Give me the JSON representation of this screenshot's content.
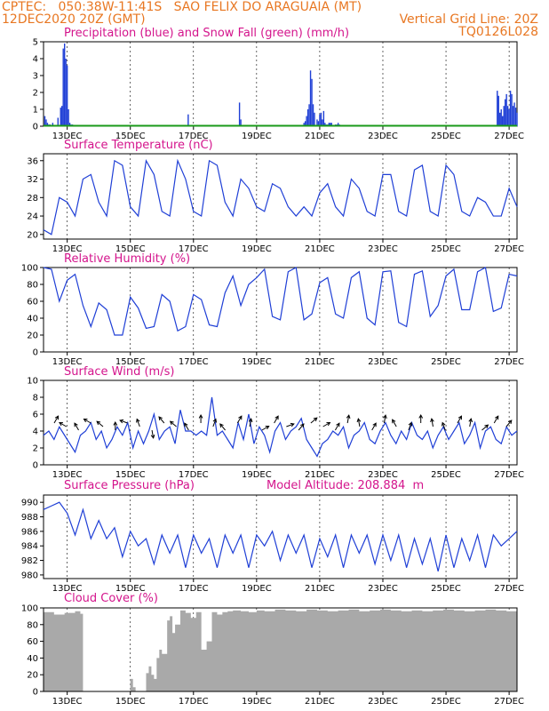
{
  "header": {
    "line1_left": "CPTEC:   050:38W-11:41S   SAO FELIX DO ARAGUAIA (MT)",
    "line2_left": "12DEC2020 20Z (GMT)",
    "line2_right": "Vertical Grid Line: 20Z",
    "line3_right": "TQ0126L028"
  },
  "colors": {
    "header": "#e87722",
    "titles": "#d4148c",
    "line": "#1f3fd6",
    "snow": "#1a9a1a",
    "cloud": "#a9a9a9"
  },
  "x_ticks": [
    "13DEC",
    "15DEC",
    "17DEC",
    "19DEC",
    "21DEC",
    "23DEC",
    "25DEC",
    "27DEC"
  ],
  "chart_data": [
    {
      "type": "bar",
      "title": "Precipitation (blue) and Snow Fall (green) (mm/h)",
      "ylim": [
        0,
        5
      ],
      "yticks": [
        0,
        1,
        2,
        3,
        4,
        5
      ],
      "x_range_hours": [
        0,
        360
      ],
      "series": [
        {
          "name": "Precipitation",
          "color": "#1f3fd6",
          "x": [
            1,
            2,
            3,
            4,
            5,
            7,
            11,
            13,
            14,
            15,
            16,
            17,
            18,
            19,
            20,
            21,
            22,
            110,
            149,
            150,
            198,
            199,
            200,
            201,
            202,
            203,
            204,
            205,
            206,
            208,
            209,
            210,
            211,
            212,
            213,
            214,
            215,
            216,
            217,
            218,
            219,
            222,
            223,
            224,
            225,
            345,
            346,
            347,
            348,
            349,
            350,
            351,
            352,
            353,
            354,
            355,
            356,
            357,
            358,
            359,
            360
          ],
          "values": [
            0.6,
            0.4,
            0.2,
            0.1,
            0.1,
            0.2,
            0.5,
            1.1,
            1.2,
            4.6,
            4.9,
            4.0,
            3.6,
            1.0,
            0.2,
            0.1,
            0.1,
            0.7,
            1.4,
            0.4,
            0.2,
            0.3,
            0.6,
            1.0,
            1.3,
            3.3,
            2.8,
            1.3,
            0.8,
            0.4,
            0.3,
            0.7,
            0.8,
            0.4,
            0.9,
            0.2,
            0.1,
            0.1,
            0.2,
            0.2,
            0.2,
            0.1,
            0.1,
            0.2,
            0.1,
            2.1,
            1.8,
            0.8,
            1.0,
            0.6,
            1.2,
            1.6,
            1.9,
            1.2,
            1.0,
            2.1,
            1.9,
            1.2,
            1.4,
            1.1,
            0.8
          ]
        },
        {
          "name": "Snow Fall",
          "color": "#1a9a1a",
          "x": [
            0,
            360
          ],
          "values": [
            0,
            0
          ]
        }
      ]
    },
    {
      "type": "line",
      "title": "Surface Temperature (nC)",
      "ylim": [
        19,
        37.5
      ],
      "yticks": [
        20,
        24,
        28,
        32,
        36
      ],
      "x": [
        0,
        6,
        12,
        18,
        24,
        30,
        36,
        42,
        48,
        54,
        60,
        66,
        72,
        78,
        84,
        90,
        96,
        102,
        108,
        114,
        120,
        126,
        132,
        138,
        144,
        150,
        156,
        162,
        168,
        174,
        180,
        186,
        192,
        198,
        204,
        210,
        216,
        222,
        228,
        234,
        240,
        246,
        252,
        258,
        264,
        270,
        276,
        282,
        288,
        294,
        300,
        306,
        312,
        318,
        324,
        330,
        336,
        342,
        348,
        354,
        360
      ],
      "values": [
        21,
        20,
        28,
        27,
        24,
        32,
        33,
        27,
        24,
        36,
        35,
        26,
        24,
        36,
        33,
        25,
        24,
        36,
        32,
        25,
        24,
        36,
        35,
        27,
        24,
        32,
        30,
        26,
        25,
        31,
        30,
        26,
        24,
        26,
        24,
        29,
        31,
        26,
        24,
        32,
        30,
        25,
        24,
        33,
        33,
        25,
        24,
        34,
        35,
        25,
        24,
        35,
        33,
        25,
        24,
        28,
        27,
        24,
        24,
        30,
        26
      ]
    },
    {
      "type": "line",
      "title": "Relative Humidity (%)",
      "ylim": [
        0,
        100
      ],
      "yticks": [
        0,
        20,
        40,
        60,
        80,
        100
      ],
      "x": [
        0,
        6,
        12,
        18,
        24,
        30,
        36,
        42,
        48,
        54,
        60,
        66,
        72,
        78,
        84,
        90,
        96,
        102,
        108,
        114,
        120,
        126,
        132,
        138,
        144,
        150,
        156,
        162,
        168,
        174,
        180,
        186,
        192,
        198,
        204,
        210,
        216,
        222,
        228,
        234,
        240,
        246,
        252,
        258,
        264,
        270,
        276,
        282,
        288,
        294,
        300,
        306,
        312,
        318,
        324,
        330,
        336,
        342,
        348,
        354,
        360
      ],
      "values": [
        100,
        98,
        60,
        85,
        92,
        55,
        30,
        58,
        50,
        20,
        20,
        65,
        52,
        28,
        30,
        68,
        60,
        25,
        30,
        68,
        62,
        32,
        30,
        70,
        90,
        55,
        80,
        88,
        98,
        42,
        38,
        95,
        100,
        38,
        45,
        82,
        88,
        45,
        40,
        88,
        95,
        40,
        32,
        95,
        96,
        35,
        30,
        92,
        96,
        42,
        55,
        90,
        98,
        50,
        50,
        95,
        100,
        48,
        52,
        92,
        90
      ]
    },
    {
      "type": "line",
      "title": "Surface Wind (m/s)",
      "ylim": [
        0,
        10
      ],
      "yticks": [
        0,
        2,
        4,
        6,
        8,
        10
      ],
      "x": [
        0,
        4,
        8,
        12,
        16,
        20,
        24,
        28,
        32,
        36,
        40,
        44,
        48,
        52,
        56,
        60,
        64,
        68,
        72,
        76,
        80,
        84,
        88,
        92,
        96,
        100,
        104,
        108,
        112,
        116,
        120,
        124,
        128,
        132,
        136,
        140,
        144,
        148,
        152,
        156,
        160,
        164,
        168,
        172,
        176,
        180,
        184,
        188,
        192,
        196,
        200,
        204,
        208,
        212,
        216,
        220,
        224,
        228,
        232,
        236,
        240,
        244,
        248,
        252,
        256,
        260,
        264,
        268,
        272,
        276,
        280,
        284,
        288,
        292,
        296,
        300,
        304,
        308,
        312,
        316,
        320,
        324,
        328,
        332,
        336,
        340,
        344,
        348,
        352,
        356,
        360
      ],
      "values": [
        3.5,
        4,
        3,
        4.5,
        3.5,
        2.5,
        1.5,
        3.5,
        4,
        5,
        3,
        4,
        2,
        3,
        4.5,
        3.5,
        5,
        2,
        4,
        2.5,
        4,
        6,
        3,
        4,
        4.5,
        2.5,
        6.5,
        4,
        4,
        3.5,
        4,
        3.5,
        8,
        3.5,
        4,
        3,
        2,
        5,
        3,
        6,
        2.5,
        4.5,
        3.5,
        1.5,
        4,
        5,
        3,
        4,
        4.5,
        5.5,
        3,
        2,
        1,
        2.5,
        3,
        4,
        3.5,
        4.5,
        2,
        3.5,
        4,
        5,
        3,
        2.5,
        4,
        5,
        3.5,
        2.5,
        4,
        3,
        5,
        3.5,
        3,
        4,
        2,
        3.5,
        4.5,
        3,
        4,
        5,
        2.5,
        3.5,
        5,
        2,
        4,
        4.5,
        3,
        2.5,
        4.5,
        3.5,
        4
      ]
    },
    {
      "type": "line",
      "title": "Surface Pressure (hPa)",
      "annotation": "Model Altitude: 208.884  m",
      "ylim": [
        979.5,
        991
      ],
      "yticks": [
        980,
        982,
        984,
        986,
        988,
        990
      ],
      "x": [
        0,
        6,
        12,
        18,
        24,
        30,
        36,
        42,
        48,
        54,
        60,
        66,
        72,
        78,
        84,
        90,
        96,
        102,
        108,
        114,
        120,
        126,
        132,
        138,
        144,
        150,
        156,
        162,
        168,
        174,
        180,
        186,
        192,
        198,
        204,
        210,
        216,
        222,
        228,
        234,
        240,
        246,
        252,
        258,
        264,
        270,
        276,
        282,
        288,
        294,
        300,
        306,
        312,
        318,
        324,
        330,
        336,
        342,
        348,
        354,
        360
      ],
      "values": [
        989,
        989.5,
        990,
        988.5,
        985.5,
        989,
        985,
        987.5,
        985,
        986.5,
        982.5,
        986,
        984,
        985,
        981.5,
        985.5,
        983,
        985.5,
        981,
        985.5,
        983,
        985,
        981,
        985.5,
        983,
        985.5,
        981,
        985.5,
        984,
        986,
        982,
        985.5,
        983,
        985.5,
        981,
        985,
        982.5,
        985.5,
        981,
        985.5,
        983,
        985.5,
        981.5,
        985.5,
        982,
        985.5,
        981,
        985,
        981.5,
        985,
        980.5,
        985.5,
        981,
        985,
        982,
        985.5,
        981,
        985.5,
        984,
        985,
        986
      ]
    },
    {
      "type": "area",
      "title": "Cloud Cover (%)",
      "ylim": [
        0,
        100
      ],
      "yticks": [
        0,
        20,
        40,
        60,
        80,
        100
      ],
      "x": [
        0,
        8,
        16,
        24,
        28,
        30,
        36,
        44,
        48,
        54,
        60,
        64,
        66,
        68,
        70,
        72,
        76,
        78,
        80,
        82,
        84,
        86,
        88,
        90,
        94,
        96,
        98,
        100,
        104,
        108,
        112,
        116,
        120,
        124,
        128,
        132,
        136,
        140,
        144,
        150,
        156,
        162,
        168,
        176,
        184,
        192,
        200,
        208,
        216,
        224,
        232,
        240,
        248,
        256,
        264,
        272,
        280,
        288,
        296,
        304,
        312,
        320,
        328,
        336,
        344,
        352,
        360
      ],
      "values": [
        95,
        92,
        94,
        96,
        93,
        0,
        0,
        0,
        0,
        0,
        0,
        0,
        15,
        5,
        0,
        0,
        0,
        22,
        30,
        20,
        15,
        40,
        50,
        45,
        85,
        90,
        70,
        80,
        97,
        94,
        88,
        95,
        50,
        60,
        95,
        92,
        95,
        96,
        97,
        96,
        95,
        97,
        96,
        98,
        97,
        96,
        98,
        97,
        96,
        97,
        98,
        96,
        97,
        98,
        97,
        96,
        97,
        96,
        97,
        98,
        97,
        96,
        97,
        98,
        97,
        96,
        98
      ]
    }
  ]
}
